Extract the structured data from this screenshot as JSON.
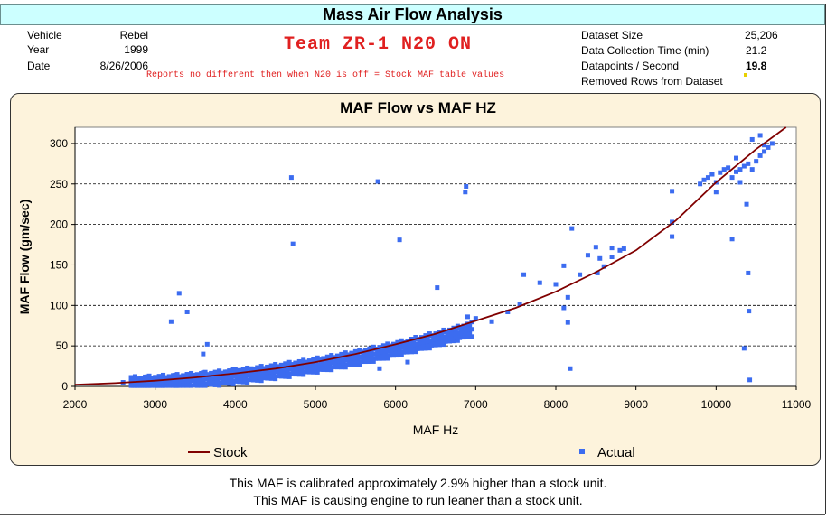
{
  "header": {
    "title": "Mass Air Flow Analysis"
  },
  "vehicle_info": {
    "vehicle_label": "Vehicle",
    "vehicle_value": "Rebel",
    "year_label": "Year",
    "year_value": "1999",
    "date_label": "Date",
    "date_value": "8/26/2006"
  },
  "banner_text": "Team ZR-1 N20 ON",
  "note_text": "Reports no different then when N20 is off = Stock MAF table values",
  "dataset_info": {
    "size_label": "Dataset Size",
    "size_value": "25,206",
    "time_label": "Data Collection Time (min)",
    "time_value": "21.2",
    "rate_label": "Datapoints / Second",
    "rate_value": "19.8",
    "removed_label": "Removed Rows from Dataset"
  },
  "chart_data": {
    "type": "scatter",
    "title": "MAF Flow vs MAF HZ",
    "xlabel": "MAF Hz",
    "ylabel": "MAF Flow (gm/sec)",
    "xlim": [
      2000,
      11000
    ],
    "ylim": [
      0,
      320
    ],
    "xticks": [
      2000,
      3000,
      4000,
      5000,
      6000,
      7000,
      8000,
      9000,
      10000,
      11000
    ],
    "yticks": [
      0,
      50,
      100,
      150,
      200,
      250,
      300
    ],
    "grid": "horizontal dashed",
    "legend": "bottom",
    "series": [
      {
        "name": "Stock",
        "kind": "line",
        "color": "#800000",
        "x": [
          2000,
          2500,
          3000,
          3500,
          4000,
          4500,
          5000,
          5500,
          6000,
          6500,
          7000,
          7500,
          8000,
          8500,
          9000,
          9500,
          10000,
          10500,
          10900
        ],
        "y": [
          2,
          4,
          7,
          11,
          16,
          22,
          30,
          40,
          52,
          65,
          81,
          97,
          117,
          141,
          168,
          205,
          252,
          293,
          322
        ]
      },
      {
        "name": "Actual",
        "kind": "scatter",
        "color": "#3c6cf0",
        "x": [
          2600,
          2700,
          2800,
          2900,
          3000,
          3100,
          3200,
          3300,
          3400,
          3500,
          3600,
          3700,
          3800,
          3900,
          4000,
          4100,
          4200,
          4300,
          4400,
          4500,
          4600,
          4700,
          4800,
          4900,
          5000,
          5100,
          5200,
          5300,
          5400,
          5500,
          5600,
          5700,
          5800,
          5900,
          6000,
          6100,
          6200,
          6300,
          6400,
          6500,
          6600,
          6700,
          6800,
          6900,
          2900,
          3100,
          3250,
          3400,
          3600,
          3800,
          4000,
          4200,
          4400,
          4600,
          4800,
          5000,
          5200,
          5400,
          5600,
          5800,
          6000,
          6200,
          6400,
          6600,
          6800,
          3300,
          3400,
          3200,
          3650,
          3600,
          4700,
          4720,
          5780,
          6050,
          6880,
          6870,
          6520,
          6900,
          6150,
          5800,
          7000,
          7200,
          7400,
          7550,
          7600,
          7800,
          8000,
          8100,
          8150,
          8200,
          8300,
          8400,
          8500,
          8550,
          8600,
          8700,
          8800,
          8850,
          8100,
          8150,
          8180,
          8520,
          8700,
          9450,
          9450,
          9450,
          9800,
          9850,
          9900,
          9950,
          10000,
          10050,
          10100,
          10150,
          10200,
          10250,
          10300,
          10350,
          10400,
          10450,
          10500,
          10550,
          10600,
          10650,
          10700,
          9950,
          10000,
          10400,
          10410,
          10420,
          10350,
          10380,
          10200,
          10250,
          10450,
          10600,
          10550,
          10300
        ],
        "y": [
          5,
          6,
          7,
          8,
          9,
          10,
          11,
          12,
          13,
          14,
          15,
          16,
          17,
          18,
          19,
          20,
          21,
          22,
          24,
          25,
          26,
          27,
          29,
          30,
          31,
          32,
          34,
          36,
          37,
          39,
          40,
          42,
          44,
          45,
          47,
          49,
          51,
          53,
          55,
          57,
          60,
          62,
          65,
          68,
          12,
          14,
          14,
          15,
          17,
          19,
          21,
          22,
          24,
          26,
          28,
          30,
          32,
          33,
          35,
          38,
          42,
          45,
          48,
          54,
          60,
          115,
          92,
          80,
          52,
          40,
          258,
          176,
          253,
          181,
          247,
          240,
          122,
          86,
          30,
          22,
          84,
          80,
          92,
          102,
          138,
          128,
          126,
          149,
          110,
          195,
          138,
          162,
          172,
          158,
          148,
          160,
          168,
          170,
          97,
          79,
          22,
          140,
          171,
          241,
          203,
          185,
          250,
          255,
          258,
          262,
          252,
          264,
          268,
          270,
          258,
          265,
          268,
          272,
          275,
          268,
          278,
          285,
          290,
          295,
          300,
          262,
          240,
          140,
          93,
          8,
          47,
          225,
          182,
          282,
          305,
          298,
          310,
          252
        ],
        "marker": "square"
      }
    ]
  },
  "footer": {
    "line1": "This MAF is calibrated approximately  2.9% higher than a stock unit.",
    "line2": "This MAF is causing engine to run leaner than a stock unit."
  }
}
